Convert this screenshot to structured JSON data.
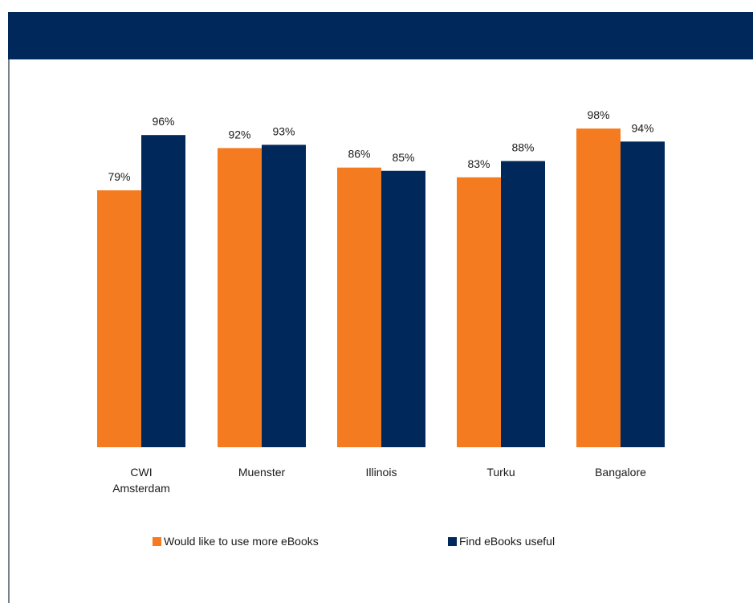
{
  "colors": {
    "header": "#00285a",
    "series_orange": "#f47b20",
    "series_navy": "#00285a"
  },
  "chart_data": {
    "type": "bar",
    "title": "",
    "xlabel": "",
    "ylabel": "",
    "ylim": [
      0,
      100
    ],
    "grid": false,
    "legend_position": "bottom",
    "categories": [
      [
        "CWI",
        "Amsterdam"
      ],
      [
        "Muenster"
      ],
      [
        "Illinois"
      ],
      [
        "Turku"
      ],
      [
        "Bangalore"
      ]
    ],
    "series": [
      {
        "name": "Would like to use more eBooks",
        "color": "#f47b20",
        "values": [
          79,
          92,
          86,
          83,
          98
        ],
        "labels": [
          "79%",
          "92%",
          "86%",
          "83%",
          "98%"
        ]
      },
      {
        "name": "Find eBooks useful",
        "color": "#00285a",
        "values": [
          96,
          93,
          85,
          88,
          94
        ],
        "labels": [
          "96%",
          "93%",
          "85%",
          "88%",
          "94%"
        ]
      }
    ]
  }
}
